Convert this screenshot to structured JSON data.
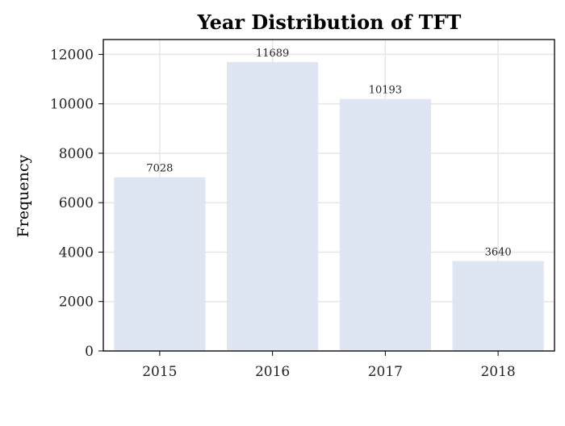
{
  "chart_data": {
    "type": "bar",
    "title": "Year Distribution of TFT",
    "xlabel": "",
    "ylabel": "Frequency",
    "categories": [
      "2015",
      "2016",
      "2017",
      "2018"
    ],
    "values": [
      7028,
      11689,
      10193,
      3640
    ],
    "data_labels": [
      "7028",
      "11689",
      "10193",
      "3640"
    ],
    "yticks": [
      0,
      2000,
      4000,
      6000,
      8000,
      10000,
      12000
    ],
    "ylim": [
      0,
      12600
    ],
    "grid": true,
    "legend": "none",
    "colors": {
      "bar": "#dbe5f1",
      "grid": "#e6e6e6",
      "axis": "#000000"
    }
  }
}
